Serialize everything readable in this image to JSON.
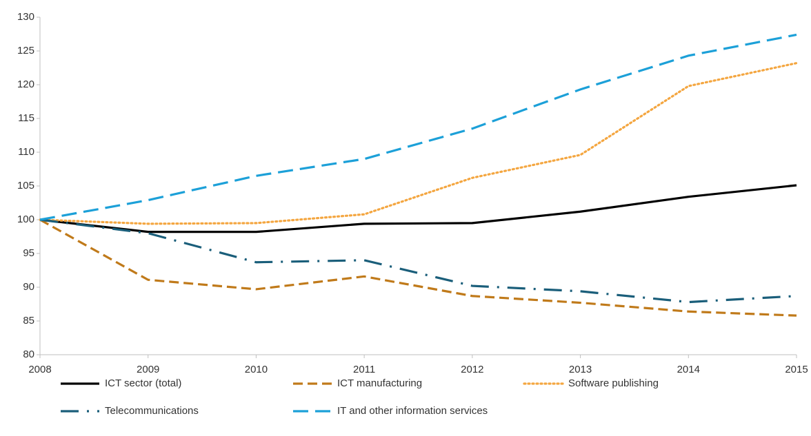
{
  "chart_data": {
    "type": "line",
    "categories": [
      "2008",
      "2009",
      "2010",
      "2011",
      "2012",
      "2013",
      "2014",
      "2015"
    ],
    "ylim": [
      80,
      130
    ],
    "yticks": [
      80,
      85,
      90,
      95,
      100,
      105,
      110,
      115,
      120,
      125,
      130
    ],
    "grid": false,
    "legend": "bottom",
    "series": [
      {
        "name": "ICT sector (total)",
        "color": "#000000",
        "dash": "solid",
        "values": [
          100,
          98.2,
          98.2,
          99.4,
          99.5,
          101.2,
          103.4,
          105.1
        ]
      },
      {
        "name": "ICT manufacturing",
        "color": "#c07a1a",
        "dash": "dashed",
        "values": [
          100,
          91.1,
          89.7,
          91.6,
          88.7,
          87.7,
          86.4,
          85.8
        ]
      },
      {
        "name": "Software publishing",
        "color": "#f4a640",
        "dash": "dotted",
        "values": [
          100,
          99.4,
          99.5,
          100.8,
          106.2,
          109.6,
          119.8,
          123.2
        ]
      },
      {
        "name": "Telecommunications",
        "color": "#1a5e7a",
        "dash": "dashdot",
        "values": [
          100,
          98.0,
          93.7,
          94.0,
          90.2,
          89.4,
          87.8,
          88.7
        ]
      },
      {
        "name": "IT and other information services",
        "color": "#1ca0d8",
        "dash": "longdash",
        "values": [
          100,
          102.9,
          106.5,
          109.0,
          113.5,
          119.3,
          124.3,
          127.4
        ]
      }
    ]
  }
}
